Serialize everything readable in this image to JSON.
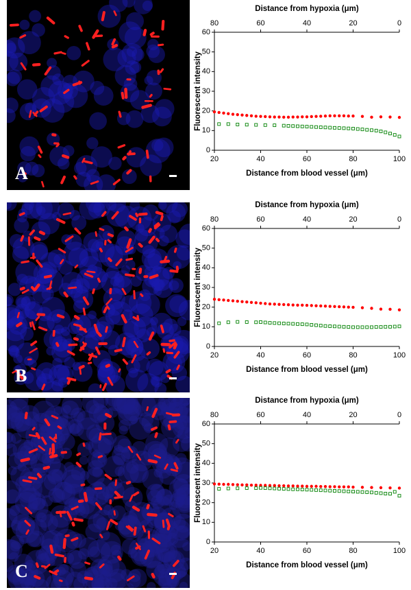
{
  "chart_data": [
    {
      "type": "scatter",
      "panel": "A",
      "xlabel": "Distance from blood vessel (μm)",
      "x2label": "Distance from hypoxia (μm)",
      "ylabel": "Fluorescent intensity",
      "xlim": [
        20,
        100
      ],
      "xticks": [
        20,
        40,
        60,
        80,
        100
      ],
      "x2lim": [
        80,
        0
      ],
      "x2ticks": [
        80,
        60,
        40,
        20,
        0
      ],
      "ylim": [
        0,
        60
      ],
      "yticks": [
        0,
        10,
        20,
        30,
        40,
        50,
        60
      ],
      "series": [
        {
          "color": "#ff0000",
          "marker": "circle",
          "x": [
            20,
            22,
            24,
            26,
            28,
            30,
            32,
            34,
            36,
            38,
            40,
            42,
            44,
            46,
            48,
            50,
            52,
            54,
            56,
            58,
            60,
            62,
            64,
            66,
            68,
            70,
            72,
            74,
            76,
            78,
            80,
            84,
            88,
            92,
            96,
            100
          ],
          "values": [
            19.5,
            19.2,
            18.9,
            18.6,
            18.3,
            18.1,
            17.9,
            17.7,
            17.5,
            17.3,
            17.2,
            17.1,
            17.0,
            16.9,
            16.9,
            16.8,
            16.8,
            16.9,
            16.9,
            17.0,
            17.0,
            17.1,
            17.2,
            17.3,
            17.4,
            17.5,
            17.5,
            17.5,
            17.5,
            17.4,
            17.4,
            17.2,
            16.8,
            17.0,
            16.9,
            16.7
          ]
        },
        {
          "color": "#008000",
          "marker": "square",
          "axis": "x2",
          "x": [
            78,
            74,
            70,
            66,
            62,
            58,
            54,
            50,
            48,
            46,
            44,
            42,
            40,
            38,
            36,
            34,
            32,
            30,
            28,
            26,
            24,
            22,
            20,
            18,
            16,
            14,
            12,
            10,
            8,
            6,
            4,
            2,
            0
          ],
          "values": [
            13.3,
            13.3,
            13.1,
            13.0,
            12.9,
            12.8,
            12.7,
            12.5,
            12.4,
            12.3,
            12.2,
            12.1,
            12.0,
            11.9,
            11.8,
            11.7,
            11.6,
            11.5,
            11.4,
            11.3,
            11.2,
            11.1,
            11.0,
            10.8,
            10.6,
            10.4,
            10.2,
            10.0,
            9.6,
            9.1,
            8.5,
            7.8,
            7.0
          ]
        }
      ]
    },
    {
      "type": "scatter",
      "panel": "B",
      "xlabel": "Distance from blood vessel (μm)",
      "x2label": "Distance from hypoxia (μm)",
      "ylabel": "Fluorescent intensity",
      "xlim": [
        20,
        100
      ],
      "xticks": [
        20,
        40,
        60,
        80,
        100
      ],
      "x2lim": [
        80,
        0
      ],
      "x2ticks": [
        80,
        60,
        40,
        20,
        0
      ],
      "ylim": [
        0,
        60
      ],
      "yticks": [
        0,
        10,
        20,
        30,
        40,
        50,
        60
      ],
      "series": [
        {
          "color": "#ff0000",
          "marker": "circle",
          "x": [
            20,
            22,
            24,
            26,
            28,
            30,
            32,
            34,
            36,
            38,
            40,
            42,
            44,
            46,
            48,
            50,
            52,
            54,
            56,
            58,
            60,
            62,
            64,
            66,
            68,
            70,
            72,
            74,
            76,
            78,
            80,
            84,
            88,
            92,
            96,
            100
          ],
          "values": [
            24.0,
            23.8,
            23.6,
            23.4,
            23.2,
            23.0,
            22.8,
            22.6,
            22.4,
            22.2,
            22.0,
            21.8,
            21.6,
            21.5,
            21.4,
            21.3,
            21.2,
            21.1,
            21.0,
            21.0,
            20.9,
            20.8,
            20.7,
            20.6,
            20.5,
            20.4,
            20.3,
            20.2,
            20.1,
            20.0,
            19.9,
            19.7,
            19.4,
            19.0,
            18.9,
            18.6
          ]
        },
        {
          "color": "#008000",
          "marker": "square",
          "axis": "x2",
          "x": [
            78,
            74,
            70,
            66,
            62,
            60,
            58,
            56,
            54,
            52,
            50,
            48,
            46,
            44,
            42,
            40,
            38,
            36,
            34,
            32,
            30,
            28,
            26,
            24,
            22,
            20,
            18,
            16,
            14,
            12,
            10,
            8,
            6,
            4,
            2,
            0
          ],
          "values": [
            11.8,
            12.3,
            12.5,
            12.4,
            12.3,
            12.4,
            12.2,
            12.0,
            11.9,
            11.8,
            11.7,
            11.6,
            11.5,
            11.4,
            11.3,
            11.2,
            11.0,
            10.8,
            10.6,
            10.4,
            10.3,
            10.2,
            10.1,
            10.0,
            9.9,
            9.8,
            9.8,
            9.8,
            9.8,
            9.8,
            9.9,
            9.9,
            10.0,
            10.0,
            10.1,
            10.2
          ]
        }
      ]
    },
    {
      "type": "scatter",
      "panel": "C",
      "xlabel": "Distance from blood vessel (μm)",
      "x2label": "Distance from hypoxia (μm)",
      "ylabel": "Fluorescent intensity",
      "xlim": [
        20,
        100
      ],
      "xticks": [
        20,
        40,
        60,
        80,
        100
      ],
      "x2lim": [
        80,
        0
      ],
      "x2ticks": [
        80,
        60,
        40,
        20,
        0
      ],
      "ylim": [
        0,
        60
      ],
      "yticks": [
        0,
        10,
        20,
        30,
        40,
        50,
        60
      ],
      "series": [
        {
          "color": "#ff0000",
          "marker": "circle",
          "x": [
            20,
            22,
            24,
            26,
            28,
            30,
            32,
            34,
            36,
            38,
            40,
            42,
            44,
            46,
            48,
            50,
            52,
            54,
            56,
            58,
            60,
            62,
            64,
            66,
            68,
            70,
            72,
            74,
            76,
            78,
            80,
            84,
            88,
            92,
            96,
            100
          ],
          "values": [
            29.5,
            29.4,
            29.3,
            29.3,
            29.2,
            29.1,
            29.0,
            29.0,
            28.9,
            28.9,
            28.8,
            28.8,
            28.7,
            28.7,
            28.6,
            28.6,
            28.5,
            28.5,
            28.4,
            28.4,
            28.3,
            28.3,
            28.3,
            28.2,
            28.2,
            28.1,
            28.1,
            28.0,
            28.0,
            28.0,
            27.9,
            27.8,
            27.7,
            27.6,
            27.5,
            27.4
          ]
        },
        {
          "color": "#008000",
          "marker": "square",
          "axis": "x2",
          "x": [
            78,
            74,
            70,
            66,
            62,
            60,
            58,
            56,
            54,
            52,
            50,
            48,
            46,
            44,
            42,
            40,
            38,
            36,
            34,
            32,
            30,
            28,
            26,
            24,
            22,
            20,
            18,
            16,
            14,
            12,
            10,
            8,
            6,
            4,
            2,
            0
          ],
          "values": [
            27.0,
            27.2,
            27.3,
            27.4,
            27.4,
            27.5,
            27.4,
            27.3,
            27.2,
            27.1,
            27.0,
            26.9,
            26.8,
            26.8,
            26.7,
            26.6,
            26.5,
            26.4,
            26.3,
            26.2,
            26.1,
            26.0,
            25.9,
            25.8,
            25.7,
            25.6,
            25.5,
            25.4,
            25.3,
            25.2,
            25.0,
            24.8,
            24.6,
            24.5,
            25.5,
            23.5
          ]
        }
      ]
    }
  ]
}
